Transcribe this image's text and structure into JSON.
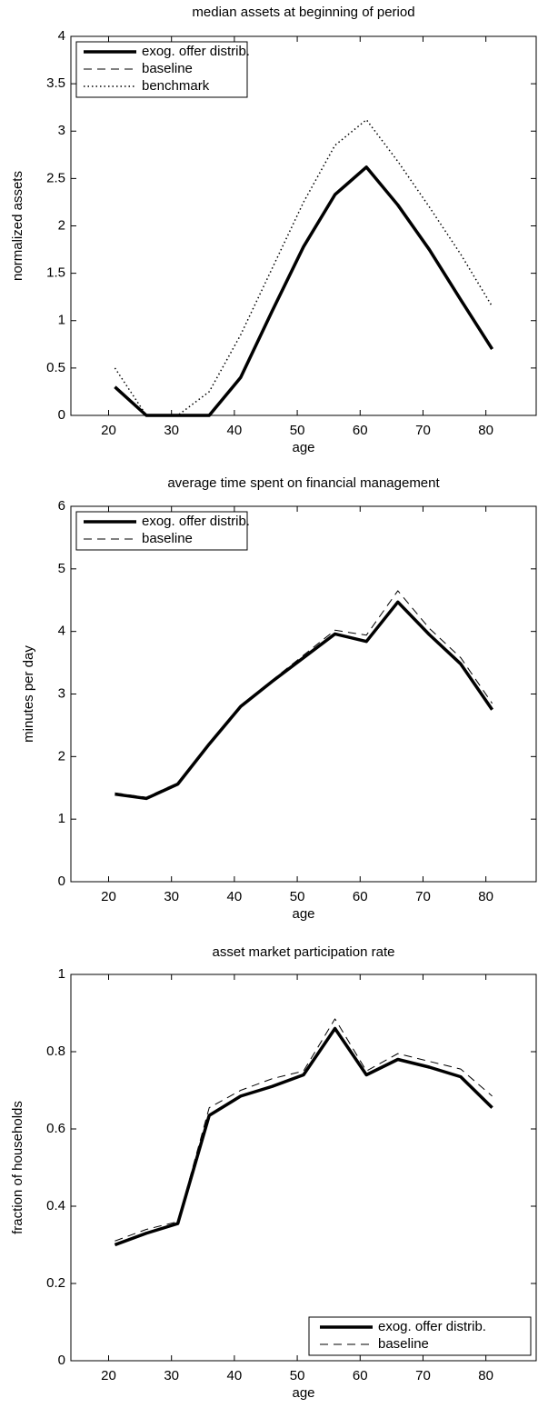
{
  "chart_data": [
    {
      "type": "line",
      "title": "median assets at beginning of period",
      "xlabel": "age",
      "ylabel": "normalized assets",
      "x": [
        21,
        26,
        31,
        36,
        41,
        46,
        51,
        56,
        61,
        66,
        71,
        76,
        81
      ],
      "series": [
        {
          "name": "exog. offer distrib.",
          "color": "#000000",
          "linestyle": "solid",
          "values": [
            0.3,
            0,
            0,
            0,
            0.4,
            1.1,
            1.78,
            2.33,
            2.62,
            2.22,
            1.75,
            1.22,
            0.7
          ]
        },
        {
          "name": "baseline",
          "color": "#000000",
          "linestyle": "dashed",
          "values": [
            0.3,
            0,
            0,
            0,
            0.4,
            1.1,
            1.78,
            2.33,
            2.62,
            2.22,
            1.75,
            1.22,
            0.7
          ]
        },
        {
          "name": "benchmark",
          "color": "#000000",
          "linestyle": "dotted",
          "values": [
            0.5,
            0,
            0,
            0.25,
            0.85,
            1.55,
            2.25,
            2.85,
            3.12,
            2.68,
            2.2,
            1.7,
            1.15
          ]
        }
      ],
      "xlim": [
        14,
        88
      ],
      "ylim": [
        0,
        4
      ],
      "xticks": [
        20,
        30,
        40,
        50,
        60,
        70,
        80
      ],
      "yticks": [
        0,
        0.5,
        1,
        1.5,
        2,
        2.5,
        3,
        3.5,
        4
      ],
      "legend": "upper-left"
    },
    {
      "type": "line",
      "title": "average time spent on financial management",
      "xlabel": "age",
      "ylabel": "minutes per day",
      "x": [
        21,
        26,
        31,
        36,
        41,
        46,
        51,
        56,
        61,
        66,
        71,
        76,
        81
      ],
      "series": [
        {
          "name": "exog. offer distrib.",
          "color": "#000000",
          "linestyle": "solid",
          "values": [
            1.4,
            1.33,
            1.56,
            2.2,
            2.8,
            3.2,
            3.58,
            3.96,
            3.84,
            4.47,
            3.95,
            3.48,
            2.75
          ]
        },
        {
          "name": "baseline",
          "color": "#000000",
          "linestyle": "dashed",
          "values": [
            1.42,
            1.35,
            1.58,
            2.22,
            2.82,
            3.22,
            3.62,
            4.02,
            3.94,
            4.65,
            4.05,
            3.58,
            2.85
          ]
        }
      ],
      "xlim": [
        14,
        88
      ],
      "ylim": [
        0,
        6
      ],
      "xticks": [
        20,
        30,
        40,
        50,
        60,
        70,
        80
      ],
      "yticks": [
        0,
        1,
        2,
        3,
        4,
        5,
        6
      ],
      "legend": "upper-left"
    },
    {
      "type": "line",
      "title": "asset market participation rate",
      "xlabel": "age",
      "ylabel": "fraction of households",
      "x": [
        21,
        26,
        31,
        36,
        41,
        46,
        51,
        56,
        61,
        66,
        71,
        76,
        81
      ],
      "series": [
        {
          "name": "exog. offer distrib.",
          "color": "#000000",
          "linestyle": "solid",
          "values": [
            0.3,
            0.33,
            0.355,
            0.635,
            0.685,
            0.71,
            0.74,
            0.86,
            0.74,
            0.78,
            0.76,
            0.735,
            0.655
          ]
        },
        {
          "name": "baseline",
          "color": "#000000",
          "linestyle": "dashed",
          "values": [
            0.31,
            0.34,
            0.36,
            0.655,
            0.7,
            0.73,
            0.75,
            0.885,
            0.75,
            0.795,
            0.775,
            0.755,
            0.685
          ]
        }
      ],
      "xlim": [
        14,
        88
      ],
      "ylim": [
        0,
        1
      ],
      "xticks": [
        20,
        30,
        40,
        50,
        60,
        70,
        80
      ],
      "yticks": [
        0,
        0.2,
        0.4,
        0.6,
        0.8,
        1
      ],
      "legend": "lower-right"
    }
  ]
}
